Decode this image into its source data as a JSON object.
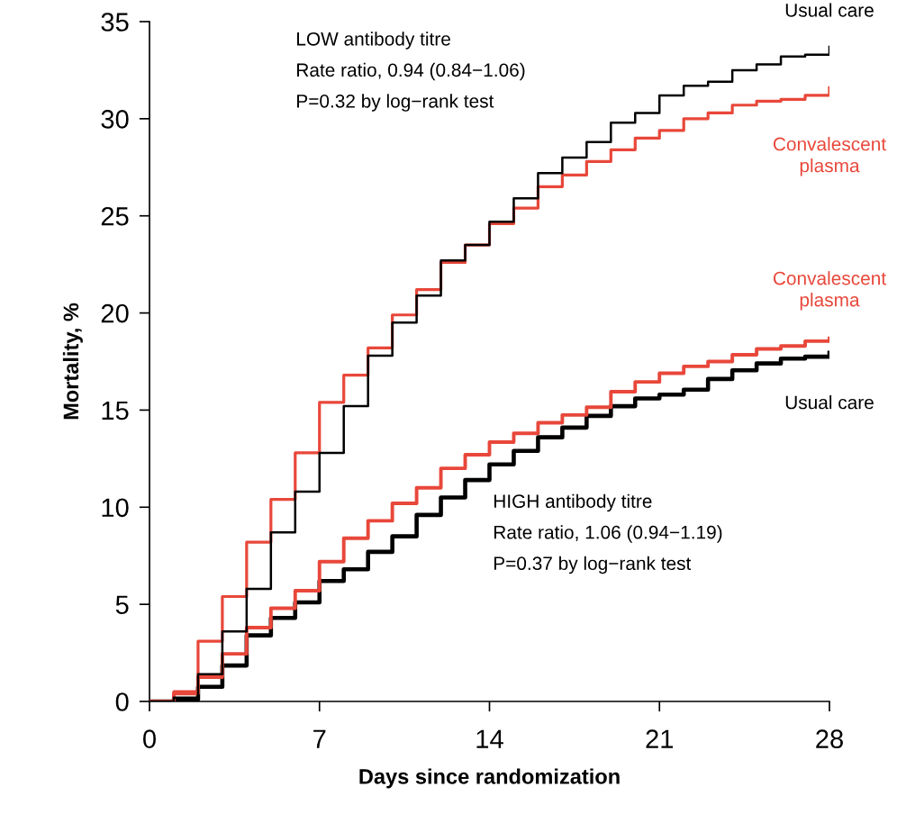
{
  "chart_data": {
    "type": "step",
    "xlabel": "Days since randomization",
    "ylabel": "Mortality, %",
    "x": [
      0,
      1,
      2,
      3,
      4,
      5,
      6,
      7,
      8,
      9,
      10,
      11,
      12,
      13,
      14,
      15,
      16,
      17,
      18,
      19,
      20,
      21,
      22,
      23,
      24,
      25,
      26,
      27,
      28
    ],
    "series": [
      {
        "name": "Usual care",
        "color": "#000000",
        "values": [
          0,
          0.2,
          1.4,
          3.6,
          5.8,
          8.7,
          10.8,
          12.8,
          15.2,
          17.8,
          19.5,
          20.9,
          22.7,
          23.5,
          24.7,
          25.9,
          27.2,
          28.0,
          28.8,
          29.8,
          30.3,
          31.2,
          31.7,
          31.9,
          32.5,
          32.8,
          33.2,
          33.3,
          33.7
        ]
      },
      {
        "name": "Convalescent\nplasma",
        "color": "#e8473a",
        "values": [
          0,
          0.5,
          3.1,
          5.4,
          8.2,
          10.4,
          12.8,
          15.4,
          16.8,
          18.2,
          19.9,
          21.2,
          22.6,
          23.5,
          24.6,
          25.4,
          26.5,
          27.1,
          27.8,
          28.4,
          29.0,
          29.4,
          30.0,
          30.3,
          30.7,
          30.9,
          31.0,
          31.2,
          31.6
        ]
      },
      {
        "name": "Convalescent\nplasma",
        "color": "#e8473a",
        "values": [
          0,
          0.4,
          1.25,
          2.45,
          3.8,
          4.8,
          5.7,
          7.2,
          8.4,
          9.3,
          10.2,
          11.0,
          12.0,
          12.7,
          13.35,
          13.8,
          14.35,
          14.75,
          15.15,
          15.95,
          16.45,
          16.9,
          17.25,
          17.5,
          17.85,
          18.15,
          18.3,
          18.55,
          18.7
        ]
      },
      {
        "name": "Usual care",
        "color": "#000000",
        "values": [
          0,
          0.1,
          0.75,
          1.85,
          3.4,
          4.3,
          5.1,
          6.2,
          6.8,
          7.7,
          8.5,
          9.6,
          10.5,
          11.4,
          12.2,
          12.9,
          13.6,
          14.1,
          14.7,
          15.2,
          15.6,
          15.8,
          16.05,
          16.6,
          17.05,
          17.4,
          17.65,
          17.75,
          17.95
        ]
      }
    ],
    "xlim": [
      0,
      28
    ],
    "xticks": [
      0,
      7,
      14,
      21,
      28
    ],
    "ylim": [
      0,
      35
    ],
    "yticks": [
      0,
      5,
      10,
      15,
      20,
      25,
      30,
      35
    ],
    "grid": false,
    "legend": false,
    "annotations": [
      "LOW antibody titre\nRate ratio, 0.94 (0.84−1.06)\nP=0.32 by log−rank test",
      "HIGH antibody titre\nRate ratio, 1.06 (0.94−1.19)\nP=0.37 by log−rank test"
    ]
  }
}
